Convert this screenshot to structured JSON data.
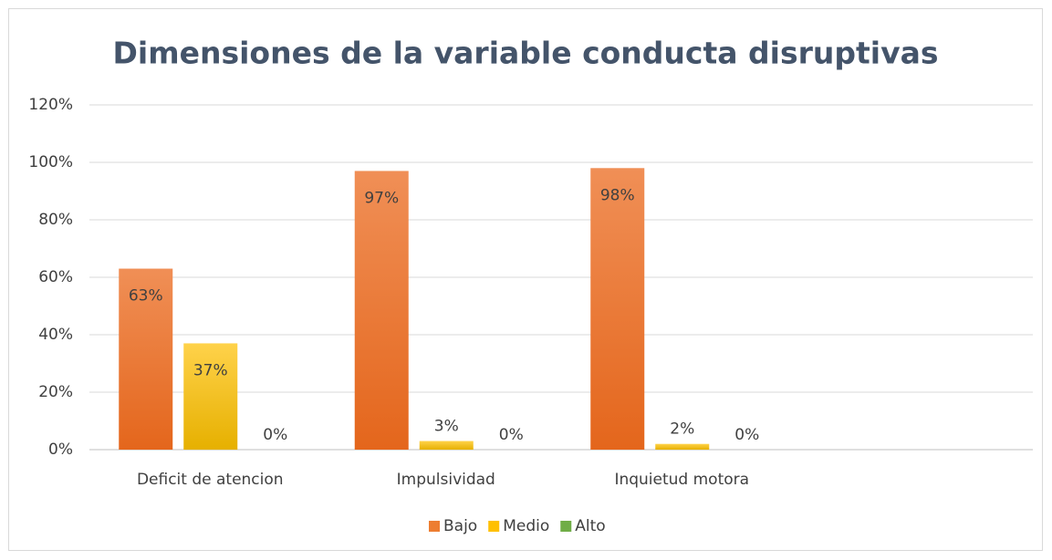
{
  "chart_data": {
    "type": "bar",
    "title": "Dimensiones de la variable conducta disruptivas",
    "categories": [
      "Deficit de atencion",
      "Impulsividad",
      "Inquietud motora",
      null
    ],
    "series": [
      {
        "name": "Bajo",
        "color": "#ed7d31",
        "values": [
          63,
          97,
          98,
          null
        ],
        "value_labels": [
          "63%",
          "97%",
          "98%",
          null
        ]
      },
      {
        "name": "Medio",
        "color": "#ffc000",
        "values": [
          37,
          3,
          2,
          null
        ],
        "value_labels": [
          "37%",
          "3%",
          "2%",
          null
        ]
      },
      {
        "name": "Alto",
        "color": "#70ad47",
        "values": [
          0,
          0,
          0,
          null
        ],
        "value_labels": [
          "0%",
          "0%",
          "0%",
          null
        ]
      }
    ],
    "ylim": [
      0,
      120
    ],
    "yticks": [
      {
        "value": 0,
        "label": "0%"
      },
      {
        "value": 20,
        "label": "20%"
      },
      {
        "value": 40,
        "label": "40%"
      },
      {
        "value": 60,
        "label": "60%"
      },
      {
        "value": 80,
        "label": "80%"
      },
      {
        "value": 100,
        "label": "100%"
      },
      {
        "value": 120,
        "label": "120%"
      }
    ],
    "grid": true,
    "legend": "bottom"
  }
}
